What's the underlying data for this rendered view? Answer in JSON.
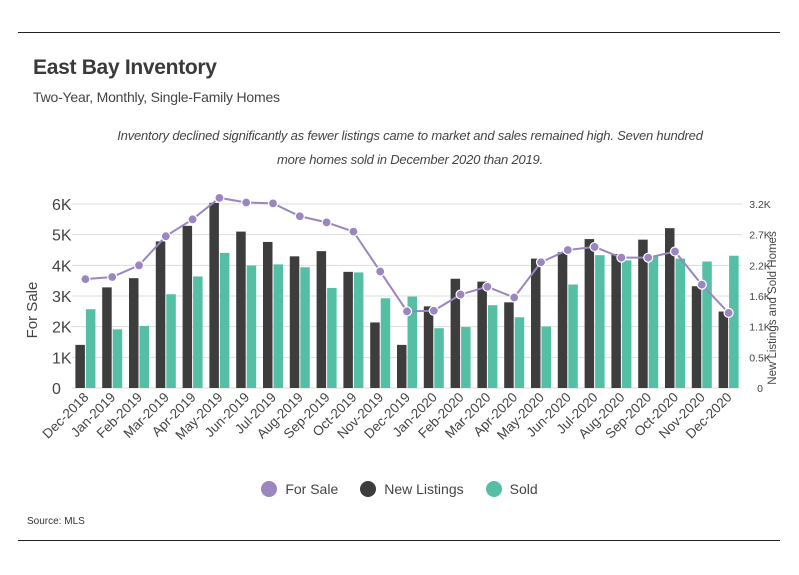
{
  "header": {
    "title": "East Bay Inventory",
    "subtitle": "Two-Year, Monthly, Single-Family Homes",
    "note_line1": "Inventory declined significantly as fewer listings came to market and sales remained high. Seven hundred",
    "note_line2": "more homes sold in December 2020 than 2019."
  },
  "footer": {
    "source": "Source:  MLS"
  },
  "colors": {
    "for_sale": "#9b86c0",
    "new_listings": "#3d3d3d",
    "sold": "#55bfa5",
    "grid": "#dddddd"
  },
  "chart_data": {
    "type": "bar",
    "title": "East Bay Inventory",
    "categories": [
      "Dec-2018",
      "Jan-2019",
      "Feb-2019",
      "Mar-2019",
      "Apr-2019",
      "May-2019",
      "Jun-2019",
      "Jul-2019",
      "Aug-2019",
      "Sep-2019",
      "Oct-2019",
      "Nov-2019",
      "Dec-2019",
      "Jan-2020",
      "Feb-2020",
      "Mar-2020",
      "Apr-2020",
      "May-2020",
      "Jun-2020",
      "Jul-2020",
      "Aug-2020",
      "Sep-2020",
      "Oct-2020",
      "Nov-2020",
      "Dec-2020"
    ],
    "left_axis": {
      "label": "For Sale",
      "range": [
        0,
        6000
      ],
      "ticks": [
        "0",
        "1K",
        "2K",
        "3K",
        "4K",
        "5K",
        "6K"
      ]
    },
    "right_axis": {
      "label": "New Listings and Sold Homes",
      "range": [
        0,
        3200
      ],
      "ticks": [
        "0",
        "0.5K",
        "1.1K",
        "1.6K",
        "2.2K",
        "2.7K",
        "3.2K"
      ]
    },
    "series": [
      {
        "name": "For Sale",
        "type": "line",
        "axis": "left",
        "values": [
          3550,
          3620,
          4000,
          4950,
          5500,
          6200,
          6050,
          6020,
          5600,
          5400,
          5100,
          3800,
          2500,
          2520,
          3050,
          3300,
          2950,
          4100,
          4500,
          4600,
          4250,
          4250,
          4450,
          3370,
          2450
        ]
      },
      {
        "name": "New Listings",
        "type": "bar",
        "axis": "right",
        "values": [
          750,
          1750,
          1910,
          2550,
          2820,
          3220,
          2720,
          2540,
          2290,
          2380,
          2020,
          1140,
          750,
          1420,
          1900,
          1850,
          1490,
          2250,
          2360,
          2590,
          2330,
          2580,
          2780,
          1770,
          1330
        ]
      },
      {
        "name": "Sold",
        "type": "bar",
        "axis": "right",
        "values": [
          1370,
          1020,
          1080,
          1630,
          1940,
          2350,
          2130,
          2150,
          2100,
          1740,
          2010,
          1560,
          1590,
          1040,
          1060,
          1440,
          1230,
          1070,
          1800,
          2310,
          2220,
          2290,
          2250,
          2200,
          2300
        ]
      }
    ],
    "legend_position": "bottom-center",
    "grid": true
  }
}
